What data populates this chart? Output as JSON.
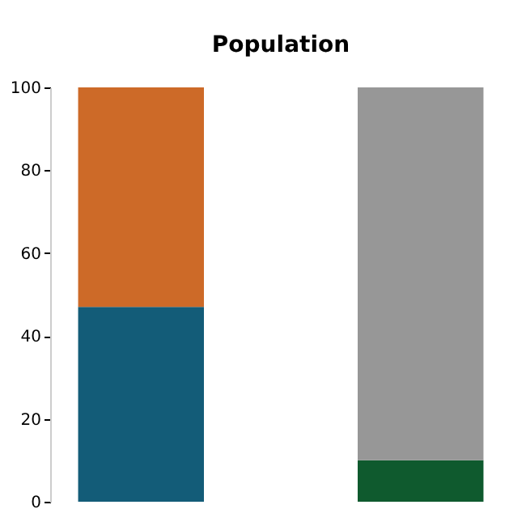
{
  "chart_data": {
    "type": "bar",
    "title": "Population",
    "categories": [
      null,
      null
    ],
    "stacked": true,
    "series": [
      {
        "values": [
          47,
          10
        ],
        "colors": [
          "#135c78",
          "#0f5a2e"
        ]
      },
      {
        "values": [
          53,
          90
        ],
        "colors": [
          "#cd6a28",
          "#979797"
        ]
      }
    ],
    "ylim": [
      0,
      100
    ],
    "yticks": [
      0,
      20,
      40,
      60,
      80,
      100
    ],
    "grid": false,
    "tick_labels": "y"
  }
}
